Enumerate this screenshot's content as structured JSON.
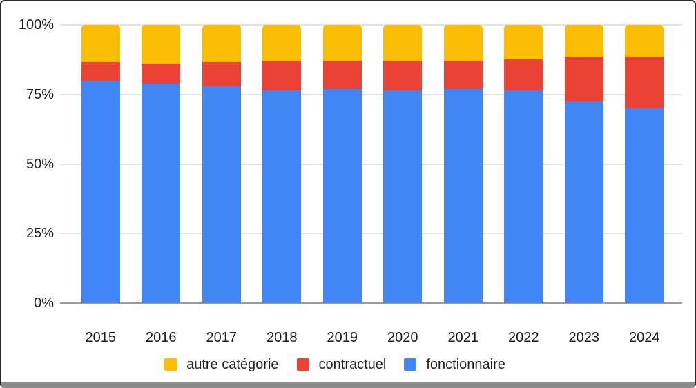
{
  "figure": {
    "background": "#ffffff",
    "border_color": "#2b2b2b",
    "bottom_edge_color": "#8c8c8c"
  },
  "colors": {
    "gridline": "#e3e3e3",
    "axis_line": "#9a9a9a",
    "text": "#1c1c1c"
  },
  "chart_data": {
    "type": "bar",
    "variant": "stacked-100-percent",
    "title": "",
    "xlabel": "",
    "ylabel": "",
    "ylim": [
      0,
      100
    ],
    "grid": true,
    "legend_position": "bottom",
    "categories": [
      "2015",
      "2016",
      "2017",
      "2018",
      "2019",
      "2020",
      "2021",
      "2022",
      "2023",
      "2024"
    ],
    "yticks": [
      {
        "value": 0,
        "label": "0%"
      },
      {
        "value": 25,
        "label": "25%"
      },
      {
        "value": 50,
        "label": "50%"
      },
      {
        "value": 75,
        "label": "75%"
      },
      {
        "value": 100,
        "label": "100%"
      }
    ],
    "series": [
      {
        "name": "autre catégorie",
        "color": "#FBBC04",
        "values": [
          13.5,
          14,
          13.5,
          13,
          13,
          13,
          13,
          12.5,
          11.5,
          11.5
        ]
      },
      {
        "name": "contractuel",
        "color": "#EA4335",
        "values": [
          6.5,
          7,
          8.5,
          10.5,
          10,
          10.5,
          10,
          11,
          16,
          18.5
        ]
      },
      {
        "name": "fonctionnaire",
        "color": "#4285F4",
        "values": [
          80,
          79,
          78,
          76.5,
          77,
          76.5,
          77,
          76.5,
          72.5,
          70
        ]
      }
    ],
    "stack_order_bottom_to_top": [
      "fonctionnaire",
      "contractuel",
      "autre catégorie"
    ]
  }
}
